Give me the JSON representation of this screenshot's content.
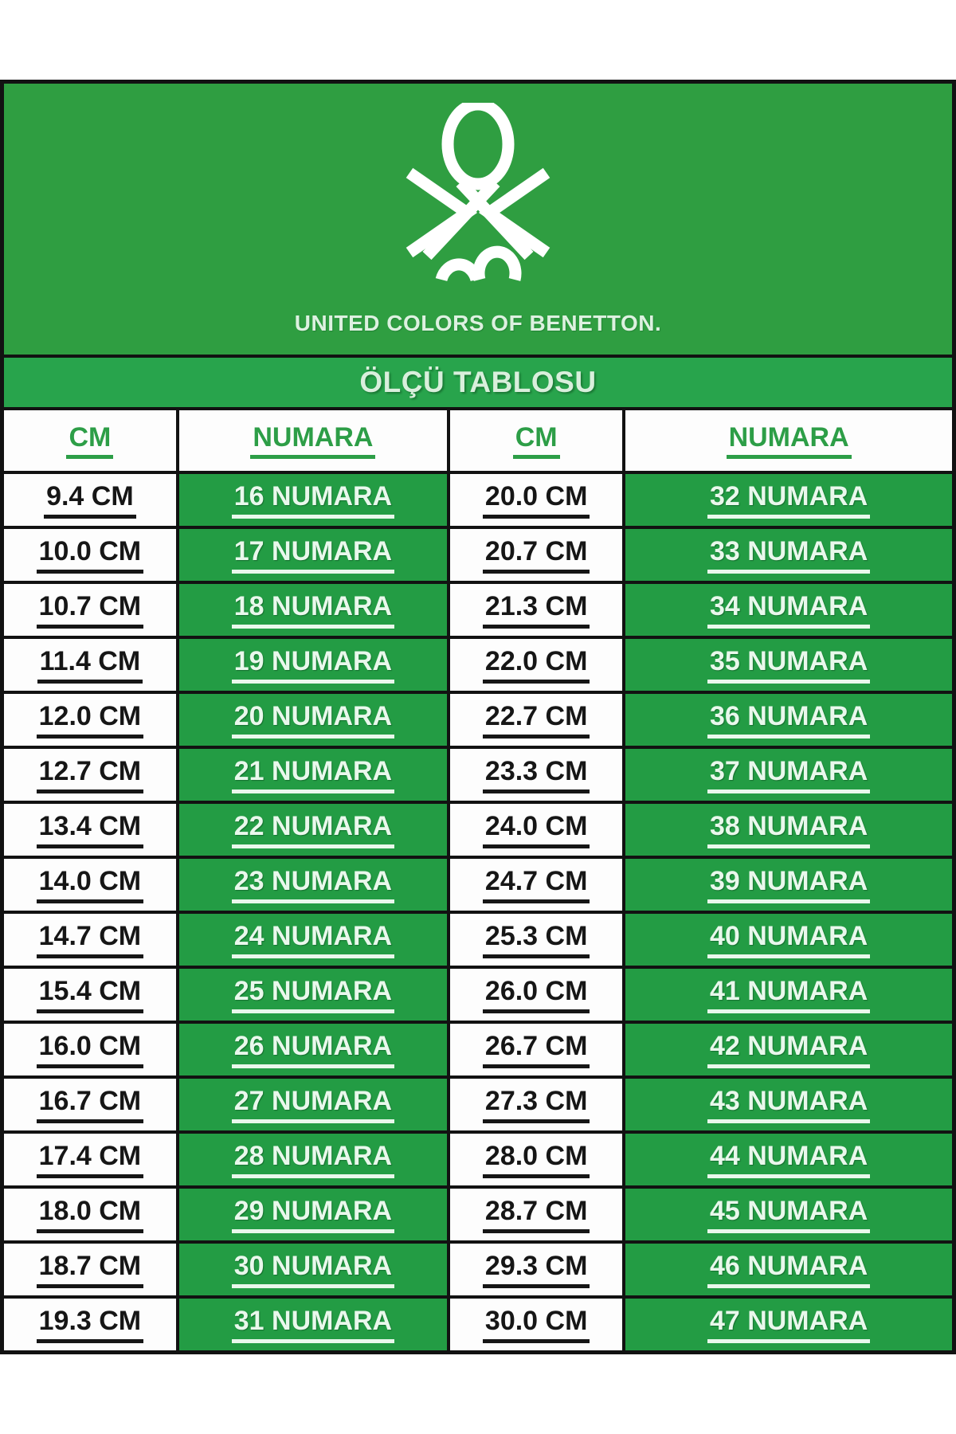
{
  "brand": {
    "logo_icon": "benetton-knot-logo",
    "wordmark": "UNITED COLORS OF BENETTON."
  },
  "title": "ÖLÇÜ TABLOSU",
  "chart_data": {
    "type": "table",
    "title": "ÖLÇÜ TABLOSU",
    "columns": [
      "CM",
      "NUMARA",
      "CM",
      "NUMARA"
    ],
    "rows": [
      [
        "9.4 CM",
        "16 NUMARA",
        "20.0 CM",
        "32 NUMARA"
      ],
      [
        "10.0 CM",
        "17 NUMARA",
        "20.7 CM",
        "33 NUMARA"
      ],
      [
        "10.7 CM",
        "18 NUMARA",
        "21.3 CM",
        "34 NUMARA"
      ],
      [
        "11.4 CM",
        "19 NUMARA",
        "22.0 CM",
        "35 NUMARA"
      ],
      [
        "12.0 CM",
        "20 NUMARA",
        "22.7 CM",
        "36 NUMARA"
      ],
      [
        "12.7 CM",
        "21 NUMARA",
        "23.3 CM",
        "37 NUMARA"
      ],
      [
        "13.4 CM",
        "22 NUMARA",
        "24.0 CM",
        "38 NUMARA"
      ],
      [
        "14.0 CM",
        "23 NUMARA",
        "24.7 CM",
        "39 NUMARA"
      ],
      [
        "14.7 CM",
        "24 NUMARA",
        "25.3 CM",
        "40 NUMARA"
      ],
      [
        "15.4 CM",
        "25 NUMARA",
        "26.0 CM",
        "41 NUMARA"
      ],
      [
        "16.0 CM",
        "26 NUMARA",
        "26.7 CM",
        "42 NUMARA"
      ],
      [
        "16.7 CM",
        "27 NUMARA",
        "27.3 CM",
        "43 NUMARA"
      ],
      [
        "17.4 CM",
        "28 NUMARA",
        "28.0 CM",
        "44 NUMARA"
      ],
      [
        "18.0 CM",
        "29 NUMARA",
        "28.7 CM",
        "45 NUMARA"
      ],
      [
        "18.7 CM",
        "30 NUMARA",
        "29.3 CM",
        "46 NUMARA"
      ],
      [
        "19.3 CM",
        "31 NUMARA",
        "30.0 CM",
        "47 NUMARA"
      ]
    ]
  },
  "colors": {
    "benetton_green": "#2f9e41",
    "band_green": "#28a44c",
    "cell_green": "#239c44",
    "border_black": "#121212",
    "header_text_green": "#2d9e47",
    "cm_text_black": "#161616",
    "light_mint_text": "#e9f8ec",
    "white": "#ffffff"
  }
}
